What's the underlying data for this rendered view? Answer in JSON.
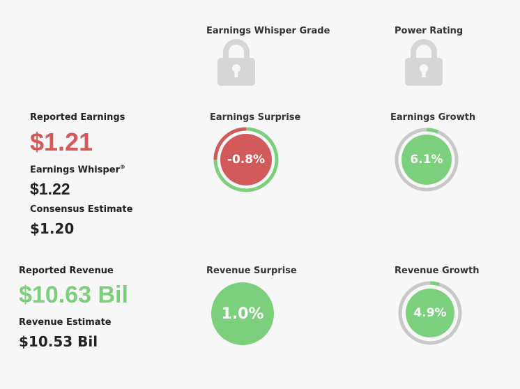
{
  "grades": {
    "whisper_grade_label": "Earnings Whisper Grade",
    "power_rating_label": "Power Rating"
  },
  "earnings": {
    "reported_label": "Reported Earnings",
    "reported_value": "$1.21",
    "whisper_label": "Earnings Whisper",
    "whisper_mark": "®",
    "whisper_value": "$1.22",
    "consensus_label": "Consensus Estimate",
    "consensus_value": "$1.20",
    "surprise_label": "Earnings Surprise",
    "surprise_value": "-0.8%",
    "surprise_fraction": -0.008,
    "growth_label": "Earnings Growth",
    "growth_value": "6.1%",
    "growth_fraction": 0.061
  },
  "revenue": {
    "reported_label": "Reported Revenue",
    "reported_value": "$10.63 Bil",
    "estimate_label": "Revenue Estimate",
    "estimate_value": "$10.53 Bil",
    "surprise_label": "Revenue Surprise",
    "surprise_value": "1.0%",
    "growth_label": "Revenue Growth",
    "growth_value": "4.9%",
    "growth_fraction": 0.049
  },
  "icons": {
    "whisper_grade": "lock-icon",
    "power_rating": "lock-icon"
  },
  "colors": {
    "negative": "#d35a5a",
    "positive": "#7ccf7c",
    "track": "#c8c8c8",
    "lock": "#d6d6d6"
  }
}
